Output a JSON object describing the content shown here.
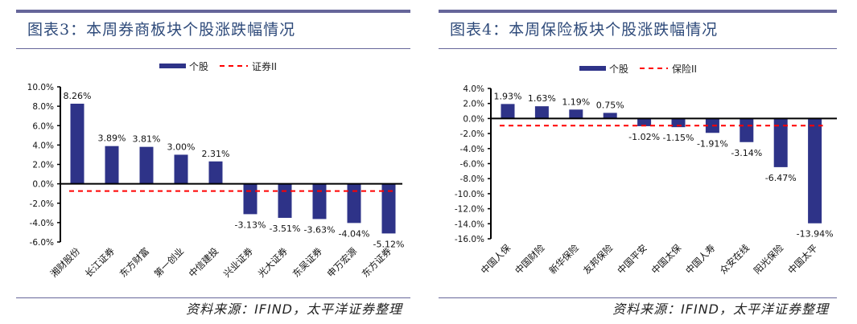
{
  "panels": [
    {
      "title": "图表3：本周券商板块个股涨跌幅情况",
      "source": "资料来源：IFIND，太平洋证券整理"
    },
    {
      "title": "图表4：本周保险板块个股涨跌幅情况",
      "source": "资料来源：IFIND，太平洋证券整理"
    }
  ],
  "colors": {
    "bar": "#2e3388",
    "reference": "#ff0000",
    "rule": "#66669a"
  },
  "chart_data": [
    {
      "type": "bar",
      "legend": [
        "个股",
        "证券II"
      ],
      "legend_position": "top",
      "categories": [
        "湘财股份",
        "长江证券",
        "东方财富",
        "第一创业",
        "中信建投",
        "兴业证券",
        "光大证券",
        "东吴证券",
        "申万宏源",
        "东方证券"
      ],
      "values": [
        8.26,
        3.89,
        3.81,
        3.0,
        2.31,
        -3.13,
        -3.51,
        -3.63,
        -4.04,
        -5.12
      ],
      "labels": [
        "8.26%",
        "3.89%",
        "3.81%",
        "3.00%",
        "2.31%",
        "-3.13%",
        "-3.51%",
        "-3.63%",
        "-4.04%",
        "-5.12%"
      ],
      "reference_value": -0.75,
      "ylim": [
        -6,
        10
      ],
      "yticks": [
        "10.0%",
        "8.0%",
        "6.0%",
        "4.0%",
        "2.0%",
        "0.0%",
        "-2.0%",
        "-4.0%",
        "-6.0%"
      ],
      "grid": false
    },
    {
      "type": "bar",
      "legend": [
        "个股",
        "保险II"
      ],
      "legend_position": "top",
      "categories": [
        "中国人保",
        "中国财险",
        "新华保险",
        "友邦保险",
        "中国平安",
        "中国太保",
        "中国人寿",
        "众安在线",
        "阳光保险",
        "中国太平"
      ],
      "values": [
        1.93,
        1.63,
        1.19,
        0.75,
        -1.02,
        -1.15,
        -1.91,
        -3.14,
        -6.47,
        -13.94
      ],
      "labels": [
        "1.93%",
        "1.63%",
        "1.19%",
        "0.75%",
        "-1.02%",
        "-1.15%",
        "-1.91%",
        "-3.14%",
        "-6.47%",
        "-13.94%"
      ],
      "reference_value": -0.95,
      "ylim": [
        -16,
        4
      ],
      "yticks": [
        "4.0%",
        "2.0%",
        "0.0%",
        "-2.0%",
        "-4.0%",
        "-6.0%",
        "-8.0%",
        "-10.0%",
        "-12.0%",
        "-14.0%",
        "-16.0%"
      ],
      "grid": false
    }
  ]
}
